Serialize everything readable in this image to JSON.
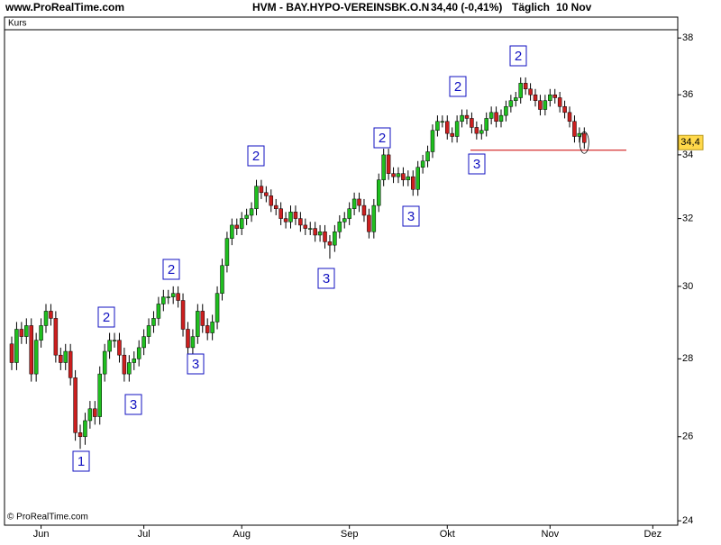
{
  "chart_data": {
    "type": "candlestick",
    "source": "www.ProRealTime.com",
    "title": "HVM - BAY.HYPO-VEREINSBK.O.N",
    "quote": "34,40 (-0,41%)",
    "period": "Täglich",
    "date": "10 Nov",
    "series_label": "Kurs",
    "copyright": "© ProRealTime.com",
    "log_scale": true,
    "grid": false,
    "colors": {
      "up": "#1fbf1f",
      "down": "#cc1f1f"
    },
    "ylim": [
      23.9,
      38.3
    ],
    "yticks": [
      24,
      26,
      28,
      30,
      32,
      34,
      36,
      38
    ],
    "categories": [
      null,
      null,
      null,
      null,
      null,
      null,
      "Jun",
      null,
      null,
      null,
      null,
      null,
      null,
      null,
      null,
      null,
      null,
      null,
      null,
      null,
      null,
      null,
      null,
      null,
      null,
      null,
      null,
      "Jul",
      null,
      null,
      null,
      null,
      null,
      null,
      null,
      null,
      null,
      null,
      null,
      null,
      null,
      null,
      null,
      null,
      null,
      null,
      null,
      "Aug",
      null,
      null,
      null,
      null,
      null,
      null,
      null,
      null,
      null,
      null,
      null,
      null,
      null,
      null,
      null,
      null,
      null,
      null,
      null,
      null,
      null,
      "Sep",
      null,
      null,
      null,
      null,
      null,
      null,
      null,
      null,
      null,
      null,
      null,
      null,
      null,
      null,
      null,
      null,
      null,
      null,
      null,
      "Okt",
      null,
      null,
      null,
      null,
      null,
      null,
      null,
      null,
      null,
      null,
      null,
      null,
      null,
      null,
      null,
      null,
      null,
      null,
      null,
      null,
      "Nov",
      null,
      null,
      null,
      null,
      null,
      null,
      null,
      null,
      null,
      null,
      null,
      null,
      null,
      null,
      null,
      null,
      null,
      null,
      null,
      null,
      "Dez",
      null,
      null,
      null,
      null,
      null
    ],
    "open": [
      28.4,
      27.9,
      28.8,
      28.6,
      28.9,
      27.6,
      28.5,
      28.9,
      29.3,
      29.1,
      28.1,
      27.9,
      28.2,
      27.5,
      26.1,
      26.0,
      26.4,
      26.7,
      26.5,
      27.6,
      28.2,
      28.5,
      28.5,
      28.1,
      27.6,
      27.9,
      28.0,
      28.3,
      28.6,
      28.9,
      29.1,
      29.5,
      29.7,
      29.7,
      29.8,
      29.6,
      28.8,
      28.3,
      28.6,
      29.3,
      28.9,
      28.7,
      29.0,
      29.8,
      30.6,
      31.4,
      31.8,
      31.7,
      32.0,
      32.1,
      32.3,
      33.0,
      32.8,
      32.7,
      32.4,
      32.3,
      32.0,
      31.9,
      32.2,
      32.0,
      31.8,
      31.7,
      31.7,
      31.5,
      31.6,
      31.3,
      31.2,
      31.6,
      31.9,
      32.0,
      32.3,
      32.6,
      32.4,
      32.1,
      31.6,
      32.4,
      33.2,
      34.0,
      33.4,
      33.3,
      33.4,
      33.2,
      33.3,
      32.9,
      33.6,
      33.8,
      34.1,
      34.8,
      35.1,
      35.1,
      34.7,
      34.6,
      35.1,
      35.3,
      35.2,
      34.9,
      34.7,
      34.8,
      35.2,
      35.4,
      35.1,
      35.3,
      35.6,
      35.8,
      35.9,
      36.4,
      36.2,
      36.0,
      35.8,
      35.5,
      35.8,
      36.0,
      35.9,
      35.6,
      35.4,
      35.1,
      34.6,
      34.7,
      null,
      null,
      null,
      null,
      null,
      null,
      null,
      null,
      null,
      null,
      null,
      null,
      null,
      null,
      null,
      null,
      null,
      null,
      null
    ],
    "high": [
      28.6,
      29.0,
      29.0,
      29.1,
      29.1,
      28.7,
      29.1,
      29.5,
      29.5,
      29.3,
      28.3,
      28.4,
      28.4,
      27.7,
      26.3,
      26.6,
      26.9,
      26.9,
      27.8,
      28.4,
      28.7,
      28.7,
      28.7,
      28.3,
      28.1,
      28.2,
      28.5,
      28.8,
      29.1,
      29.3,
      29.7,
      29.9,
      29.9,
      30.0,
      30.0,
      29.8,
      29.0,
      28.8,
      29.5,
      29.5,
      29.1,
      29.2,
      30.0,
      30.8,
      31.6,
      32.0,
      32.0,
      32.2,
      32.3,
      32.5,
      33.2,
      33.2,
      33.0,
      32.9,
      32.6,
      32.5,
      32.2,
      32.4,
      32.4,
      32.2,
      32.0,
      31.9,
      31.9,
      31.8,
      31.8,
      31.5,
      31.8,
      32.1,
      32.2,
      32.5,
      32.8,
      32.8,
      32.6,
      32.3,
      32.6,
      33.4,
      34.2,
      34.2,
      33.6,
      33.6,
      33.6,
      33.5,
      33.5,
      33.8,
      34.0,
      34.3,
      35.0,
      35.3,
      35.3,
      35.3,
      34.9,
      35.3,
      35.5,
      35.5,
      35.4,
      35.1,
      35.0,
      35.4,
      35.6,
      35.6,
      35.5,
      35.8,
      36.0,
      36.1,
      36.6,
      36.6,
      36.4,
      36.2,
      36.0,
      36.0,
      36.2,
      36.2,
      36.1,
      35.8,
      35.6,
      35.3,
      34.9,
      34.9,
      null,
      null,
      null,
      null,
      null,
      null,
      null,
      null,
      null,
      null,
      null,
      null,
      null,
      null,
      null,
      null,
      null,
      null,
      null
    ],
    "low": [
      27.7,
      27.7,
      28.4,
      28.4,
      27.4,
      27.4,
      28.3,
      28.7,
      28.9,
      27.9,
      27.7,
      27.7,
      27.3,
      25.9,
      25.7,
      25.8,
      26.2,
      26.3,
      26.3,
      27.4,
      28.0,
      28.3,
      27.9,
      27.4,
      27.4,
      27.7,
      27.8,
      28.1,
      28.4,
      28.7,
      28.9,
      29.3,
      29.5,
      29.5,
      29.4,
      28.6,
      28.1,
      28.1,
      28.4,
      28.7,
      28.5,
      28.5,
      28.8,
      29.6,
      30.4,
      31.2,
      31.5,
      31.5,
      31.8,
      31.9,
      32.1,
      32.6,
      32.5,
      32.2,
      32.1,
      31.8,
      31.7,
      31.7,
      31.8,
      31.6,
      31.5,
      31.5,
      31.3,
      31.3,
      31.1,
      30.8,
      31.0,
      31.4,
      31.7,
      31.8,
      32.1,
      32.2,
      31.9,
      31.4,
      31.4,
      32.2,
      33.0,
      33.2,
      33.1,
      33.1,
      33.0,
      33.0,
      32.7,
      32.7,
      33.4,
      33.6,
      33.9,
      34.6,
      34.9,
      34.5,
      34.4,
      34.4,
      34.9,
      35.0,
      34.7,
      34.5,
      34.5,
      34.6,
      35.0,
      34.9,
      34.9,
      35.1,
      35.4,
      35.6,
      35.7,
      36.0,
      35.8,
      35.6,
      35.3,
      35.3,
      35.6,
      35.7,
      35.4,
      35.2,
      34.9,
      34.4,
      34.4,
      34.2,
      null,
      null,
      null,
      null,
      null,
      null,
      null,
      null,
      null,
      null,
      null,
      null,
      null,
      null,
      null,
      null,
      null,
      null,
      null
    ],
    "close": [
      27.9,
      28.8,
      28.6,
      28.9,
      27.6,
      28.5,
      28.9,
      29.3,
      29.1,
      28.1,
      27.9,
      28.2,
      27.5,
      26.1,
      26.0,
      26.4,
      26.7,
      26.5,
      27.6,
      28.2,
      28.5,
      28.5,
      28.1,
      27.6,
      27.9,
      28.0,
      28.3,
      28.6,
      28.9,
      29.1,
      29.5,
      29.7,
      29.7,
      29.8,
      29.6,
      28.8,
      28.3,
      28.6,
      29.3,
      28.9,
      28.7,
      29.0,
      29.8,
      30.6,
      31.4,
      31.8,
      31.7,
      32.0,
      32.1,
      32.3,
      33.0,
      32.8,
      32.7,
      32.4,
      32.3,
      32.0,
      31.9,
      32.2,
      32.0,
      31.8,
      31.7,
      31.7,
      31.5,
      31.6,
      31.3,
      31.2,
      31.6,
      31.9,
      32.0,
      32.3,
      32.6,
      32.4,
      32.1,
      31.6,
      32.4,
      33.2,
      34.0,
      33.4,
      33.3,
      33.4,
      33.2,
      33.3,
      32.9,
      33.6,
      33.8,
      34.1,
      34.8,
      35.1,
      35.1,
      34.7,
      34.6,
      35.1,
      35.3,
      35.2,
      34.9,
      34.7,
      34.8,
      35.2,
      35.4,
      35.1,
      35.3,
      35.6,
      35.8,
      35.9,
      36.4,
      36.2,
      36.0,
      35.8,
      35.5,
      35.8,
      36.0,
      35.9,
      35.6,
      35.4,
      35.1,
      34.6,
      34.7,
      34.4,
      null,
      null,
      null,
      null,
      null,
      null,
      null,
      null,
      null,
      null,
      null,
      null,
      null,
      null,
      null,
      null,
      null,
      null,
      null
    ],
    "last_price_label": "34,4",
    "support_level": 34.15,
    "support_color": "#cc0000",
    "annotations": [
      "1",
      "2",
      "3",
      "2",
      "3",
      "2",
      "3",
      "2",
      "3",
      "2",
      "3",
      "2"
    ]
  }
}
